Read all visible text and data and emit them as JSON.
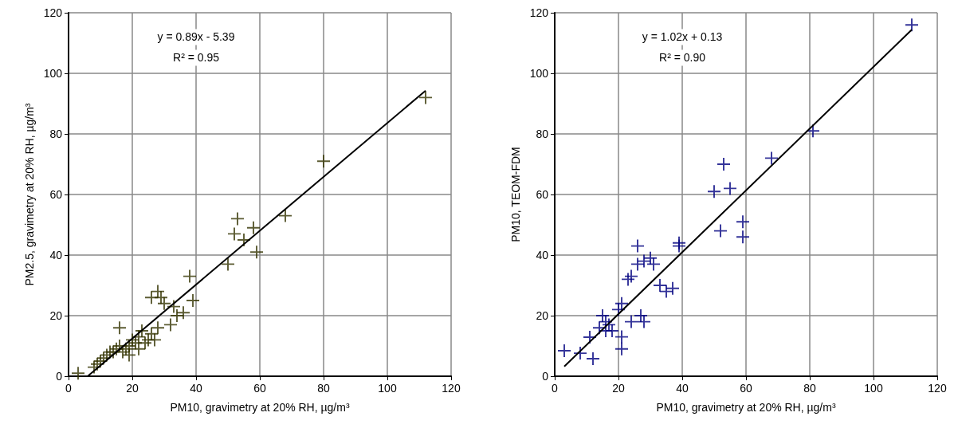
{
  "chart_data": [
    {
      "type": "scatter",
      "xlabel": "PM10, gravimetry at 20% RH, µg/m³",
      "ylabel": "PM2.5, gravimetry at 20% RH, µg/m³",
      "annotations": [
        "y = 0.89x - 5.39",
        "R² = 0.95"
      ],
      "xlim": [
        0,
        120
      ],
      "ylim": [
        0,
        120
      ],
      "xticks": [
        0,
        20,
        40,
        60,
        80,
        100,
        120
      ],
      "yticks": [
        0,
        20,
        40,
        60,
        80,
        100,
        120
      ],
      "grid": true,
      "marker": "cross",
      "series": [
        {
          "color": "#333300",
          "x": [
            3,
            8,
            9,
            10,
            11,
            12,
            13,
            14,
            15,
            16,
            16,
            17,
            18,
            19,
            19,
            20,
            21,
            22,
            22,
            23,
            24,
            25,
            26,
            27,
            28,
            26,
            28,
            29,
            30,
            32,
            33,
            34,
            36,
            38,
            39,
            50,
            52,
            53,
            55,
            58,
            59,
            68,
            80,
            112
          ],
          "values": [
            1,
            3,
            4,
            5,
            6,
            7,
            8,
            8,
            9,
            10,
            16,
            8,
            9,
            10,
            7,
            12,
            11,
            9,
            13,
            15,
            11,
            12,
            14,
            12,
            16,
            26,
            28,
            26,
            24,
            17,
            23,
            20,
            21,
            33,
            25,
            37,
            47,
            52,
            45,
            49,
            41,
            53,
            71,
            92
          ]
        },
        {
          "type": "line",
          "color": "#000000",
          "marker": "none",
          "line_style": "solid",
          "x": [
            6,
            112
          ],
          "values": [
            0,
            94.3
          ]
        }
      ]
    },
    {
      "type": "scatter",
      "xlabel": "PM10, gravimetry at 20% RH, µg/m³",
      "ylabel": "PM10, TEOM-FDM",
      "annotations": [
        "y = 1.02x + 0.13",
        "R² = 0.90"
      ],
      "xlim": [
        0,
        120
      ],
      "ylim": [
        0,
        120
      ],
      "xticks": [
        0,
        20,
        40,
        60,
        80,
        100,
        120
      ],
      "yticks": [
        0,
        20,
        40,
        60,
        80,
        100,
        120
      ],
      "grid": true,
      "marker": "cross",
      "series": [
        {
          "color": "#000080",
          "x": [
            3,
            8,
            11,
            12,
            14,
            15,
            16,
            16,
            17,
            18,
            20,
            21,
            21,
            21,
            23,
            24,
            24,
            26,
            26,
            27,
            28,
            28,
            30,
            31,
            33,
            35,
            37,
            39,
            39,
            50,
            52,
            53,
            55,
            59,
            59,
            68,
            81,
            112
          ],
          "values": [
            8.4,
            7.6,
            12.9,
            5.8,
            16,
            20,
            18,
            15,
            17,
            15,
            22,
            13,
            9,
            24,
            32,
            18,
            33,
            37,
            43,
            20,
            38,
            18,
            39,
            37,
            30,
            28,
            29,
            44,
            43,
            61,
            48,
            70,
            62,
            51,
            46,
            72,
            81,
            116
          ]
        },
        {
          "type": "line",
          "color": "#000000",
          "marker": "none",
          "line_style": "solid",
          "x": [
            3,
            112
          ],
          "values": [
            3.2,
            114.4
          ]
        }
      ]
    }
  ]
}
